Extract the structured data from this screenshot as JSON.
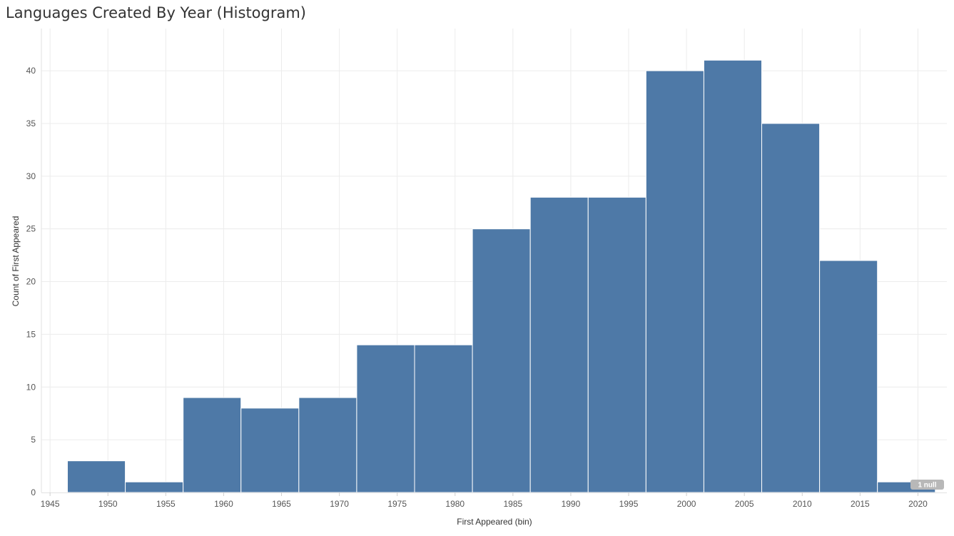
{
  "title": "Languages Created By Year (Histogram)",
  "colors": {
    "bar": "#4e79a7",
    "grid": "#ececec",
    "null_badge": "#b8b8b8"
  },
  "null_badge": "1 null",
  "chart_data": {
    "type": "bar",
    "title": "Languages Created By Year (Histogram)",
    "xlabel": "First Appeared (bin)",
    "ylabel": "Count of First Appeared",
    "bin_size": 5,
    "bins": [
      {
        "start": 1946.5,
        "value": 3
      },
      {
        "start": 1951.5,
        "value": 1
      },
      {
        "start": 1956.5,
        "value": 9
      },
      {
        "start": 1961.5,
        "value": 8
      },
      {
        "start": 1966.5,
        "value": 9
      },
      {
        "start": 1971.5,
        "value": 14
      },
      {
        "start": 1976.5,
        "value": 14
      },
      {
        "start": 1981.5,
        "value": 25
      },
      {
        "start": 1986.5,
        "value": 28
      },
      {
        "start": 1991.5,
        "value": 28
      },
      {
        "start": 1996.5,
        "value": 40
      },
      {
        "start": 2001.5,
        "value": 41
      },
      {
        "start": 2006.5,
        "value": 35
      },
      {
        "start": 2011.5,
        "value": 22
      },
      {
        "start": 2016.5,
        "value": 1
      }
    ],
    "xticks": [
      1945,
      1950,
      1955,
      1960,
      1965,
      1970,
      1975,
      1980,
      1985,
      1990,
      1995,
      2000,
      2005,
      2010,
      2015,
      2020
    ],
    "yticks": [
      0,
      5,
      10,
      15,
      20,
      25,
      30,
      35,
      40
    ],
    "xlim": [
      1944.25,
      2022.5
    ],
    "ylim": [
      0,
      44
    ],
    "grid": true,
    "legend": "none"
  }
}
